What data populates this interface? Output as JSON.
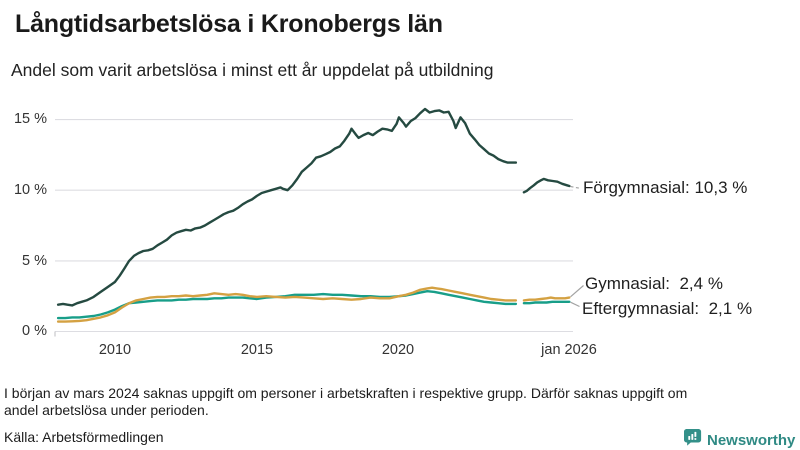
{
  "header": {
    "title": "Långtidsarbetslösa i Kronobergs län",
    "subtitle": "Andel som varit arbetslösa i minst ett år uppdelat på utbildning"
  },
  "chart_data": {
    "type": "line",
    "title": "Långtidsarbetslösa i Kronobergs län",
    "subtitle": "Andel som varit arbetslösa i minst ett år uppdelat på utbildning",
    "unit": "%",
    "x_domain": [
      2007.89,
      2026.13
    ],
    "ylim": [
      0,
      16.5
    ],
    "grid": "horizontal",
    "legend_position": "right-edge-labels",
    "data_gap": {
      "from": 2024.17,
      "to": 2024.4
    },
    "yticks": [
      {
        "v": 15,
        "label": "15 %"
      },
      {
        "v": 10,
        "label": "10 %"
      },
      {
        "v": 5,
        "label": "5 %"
      },
      {
        "v": 0,
        "label": "0 %"
      }
    ],
    "xticks": [
      {
        "t": 2010,
        "label": "2010"
      },
      {
        "t": 2015,
        "label": "2015"
      },
      {
        "t": 2020,
        "label": "2020"
      },
      {
        "t": 2026,
        "label": "jan 2026"
      }
    ],
    "series": [
      {
        "name": "Förgymnasial",
        "color": "#254A41",
        "end_value": "10,3 %",
        "end_label": "Förgymnasial: 10,3 %",
        "segments": [
          [
            [
              2008.0,
              1.9
            ],
            [
              2008.17,
              1.95
            ],
            [
              2008.33,
              1.9
            ],
            [
              2008.5,
              1.85
            ],
            [
              2008.67,
              2.0
            ],
            [
              2008.83,
              2.1
            ],
            [
              2009.0,
              2.2
            ],
            [
              2009.25,
              2.45
            ],
            [
              2009.5,
              2.8
            ],
            [
              2009.75,
              3.15
            ],
            [
              2010.0,
              3.5
            ],
            [
              2010.17,
              3.95
            ],
            [
              2010.33,
              4.45
            ],
            [
              2010.5,
              5.0
            ],
            [
              2010.67,
              5.35
            ],
            [
              2010.83,
              5.55
            ],
            [
              2011.0,
              5.7
            ],
            [
              2011.17,
              5.75
            ],
            [
              2011.33,
              5.85
            ],
            [
              2011.5,
              6.1
            ],
            [
              2011.67,
              6.3
            ],
            [
              2011.83,
              6.5
            ],
            [
              2012.0,
              6.8
            ],
            [
              2012.17,
              7.0
            ],
            [
              2012.33,
              7.1
            ],
            [
              2012.5,
              7.2
            ],
            [
              2012.67,
              7.15
            ],
            [
              2012.83,
              7.3
            ],
            [
              2013.0,
              7.35
            ],
            [
              2013.17,
              7.5
            ],
            [
              2013.33,
              7.7
            ],
            [
              2013.5,
              7.9
            ],
            [
              2013.67,
              8.1
            ],
            [
              2013.83,
              8.3
            ],
            [
              2014.0,
              8.45
            ],
            [
              2014.17,
              8.55
            ],
            [
              2014.33,
              8.75
            ],
            [
              2014.5,
              9.0
            ],
            [
              2014.67,
              9.2
            ],
            [
              2014.83,
              9.35
            ],
            [
              2015.0,
              9.6
            ],
            [
              2015.17,
              9.8
            ],
            [
              2015.33,
              9.9
            ],
            [
              2015.5,
              10.0
            ],
            [
              2015.67,
              10.1
            ],
            [
              2015.83,
              10.2
            ],
            [
              2015.92,
              10.1
            ],
            [
              2016.08,
              10.0
            ],
            [
              2016.25,
              10.35
            ],
            [
              2016.42,
              10.8
            ],
            [
              2016.58,
              11.3
            ],
            [
              2016.75,
              11.6
            ],
            [
              2016.92,
              11.9
            ],
            [
              2017.08,
              12.3
            ],
            [
              2017.25,
              12.4
            ],
            [
              2017.42,
              12.55
            ],
            [
              2017.58,
              12.7
            ],
            [
              2017.75,
              12.95
            ],
            [
              2017.92,
              13.1
            ],
            [
              2018.08,
              13.5
            ],
            [
              2018.25,
              14.0
            ],
            [
              2018.33,
              14.35
            ],
            [
              2018.5,
              13.9
            ],
            [
              2018.58,
              13.7
            ],
            [
              2018.75,
              13.9
            ],
            [
              2018.92,
              14.05
            ],
            [
              2019.08,
              13.9
            ],
            [
              2019.25,
              14.15
            ],
            [
              2019.42,
              14.35
            ],
            [
              2019.58,
              14.3
            ],
            [
              2019.75,
              14.2
            ],
            [
              2019.92,
              14.7
            ],
            [
              2020.0,
              15.15
            ],
            [
              2020.17,
              14.75
            ],
            [
              2020.25,
              14.5
            ],
            [
              2020.42,
              14.9
            ],
            [
              2020.58,
              15.1
            ],
            [
              2020.75,
              15.45
            ],
            [
              2020.92,
              15.75
            ],
            [
              2021.08,
              15.5
            ],
            [
              2021.25,
              15.6
            ],
            [
              2021.42,
              15.65
            ],
            [
              2021.58,
              15.5
            ],
            [
              2021.75,
              15.55
            ],
            [
              2021.92,
              14.9
            ],
            [
              2022.0,
              14.4
            ],
            [
              2022.17,
              15.15
            ],
            [
              2022.33,
              14.75
            ],
            [
              2022.5,
              14.0
            ],
            [
              2022.67,
              13.6
            ],
            [
              2022.83,
              13.2
            ],
            [
              2023.0,
              12.9
            ],
            [
              2023.17,
              12.6
            ],
            [
              2023.33,
              12.45
            ],
            [
              2023.5,
              12.2
            ],
            [
              2023.67,
              12.05
            ],
            [
              2023.83,
              11.95
            ],
            [
              2024.0,
              11.95
            ],
            [
              2024.12,
              11.95
            ]
          ],
          [
            [
              2024.4,
              9.85
            ],
            [
              2024.5,
              9.95
            ],
            [
              2024.62,
              10.15
            ],
            [
              2024.75,
              10.35
            ],
            [
              2024.87,
              10.55
            ],
            [
              2025.0,
              10.7
            ],
            [
              2025.1,
              10.8
            ],
            [
              2025.25,
              10.7
            ],
            [
              2025.42,
              10.65
            ],
            [
              2025.58,
              10.6
            ],
            [
              2025.75,
              10.45
            ],
            [
              2025.92,
              10.35
            ],
            [
              2026.0,
              10.3
            ]
          ]
        ]
      },
      {
        "name": "Gymnasial",
        "color": "#D4A142",
        "end_value": "2,4 %",
        "end_label": "Gymnasial:  2,4 %",
        "segments": [
          [
            [
              2008.0,
              0.7
            ],
            [
              2008.25,
              0.7
            ],
            [
              2008.5,
              0.72
            ],
            [
              2008.75,
              0.75
            ],
            [
              2009.0,
              0.8
            ],
            [
              2009.25,
              0.9
            ],
            [
              2009.5,
              1.0
            ],
            [
              2009.75,
              1.15
            ],
            [
              2010.0,
              1.35
            ],
            [
              2010.25,
              1.7
            ],
            [
              2010.5,
              2.0
            ],
            [
              2010.75,
              2.2
            ],
            [
              2011.0,
              2.3
            ],
            [
              2011.25,
              2.4
            ],
            [
              2011.5,
              2.45
            ],
            [
              2011.75,
              2.45
            ],
            [
              2012.0,
              2.5
            ],
            [
              2012.25,
              2.5
            ],
            [
              2012.5,
              2.55
            ],
            [
              2012.75,
              2.5
            ],
            [
              2013.0,
              2.55
            ],
            [
              2013.25,
              2.6
            ],
            [
              2013.5,
              2.7
            ],
            [
              2013.75,
              2.65
            ],
            [
              2014.0,
              2.6
            ],
            [
              2014.25,
              2.65
            ],
            [
              2014.5,
              2.6
            ],
            [
              2014.75,
              2.5
            ],
            [
              2015.0,
              2.45
            ],
            [
              2015.33,
              2.5
            ],
            [
              2015.67,
              2.45
            ],
            [
              2016.0,
              2.4
            ],
            [
              2016.33,
              2.45
            ],
            [
              2016.67,
              2.4
            ],
            [
              2017.0,
              2.35
            ],
            [
              2017.33,
              2.3
            ],
            [
              2017.67,
              2.35
            ],
            [
              2018.0,
              2.3
            ],
            [
              2018.33,
              2.25
            ],
            [
              2018.67,
              2.3
            ],
            [
              2019.0,
              2.4
            ],
            [
              2019.33,
              2.35
            ],
            [
              2019.67,
              2.35
            ],
            [
              2020.0,
              2.5
            ],
            [
              2020.25,
              2.6
            ],
            [
              2020.5,
              2.75
            ],
            [
              2020.75,
              2.95
            ],
            [
              2021.0,
              3.05
            ],
            [
              2021.17,
              3.1
            ],
            [
              2021.33,
              3.05
            ],
            [
              2021.5,
              3.0
            ],
            [
              2021.75,
              2.9
            ],
            [
              2022.0,
              2.8
            ],
            [
              2022.25,
              2.7
            ],
            [
              2022.5,
              2.6
            ],
            [
              2022.75,
              2.5
            ],
            [
              2023.0,
              2.4
            ],
            [
              2023.25,
              2.3
            ],
            [
              2023.5,
              2.25
            ],
            [
              2023.75,
              2.2
            ],
            [
              2024.0,
              2.2
            ],
            [
              2024.12,
              2.2
            ]
          ],
          [
            [
              2024.4,
              2.2
            ],
            [
              2024.6,
              2.25
            ],
            [
              2024.8,
              2.25
            ],
            [
              2025.0,
              2.3
            ],
            [
              2025.2,
              2.35
            ],
            [
              2025.35,
              2.4
            ],
            [
              2025.5,
              2.35
            ],
            [
              2025.7,
              2.35
            ],
            [
              2025.85,
              2.35
            ],
            [
              2026.0,
              2.4
            ]
          ]
        ]
      },
      {
        "name": "Eftergymnasial",
        "color": "#189E89",
        "end_value": "2,1 %",
        "end_label": "Eftergymnasial:  2,1 %",
        "segments": [
          [
            [
              2008.0,
              0.95
            ],
            [
              2008.25,
              0.95
            ],
            [
              2008.5,
              1.0
            ],
            [
              2008.75,
              1.0
            ],
            [
              2009.0,
              1.05
            ],
            [
              2009.25,
              1.1
            ],
            [
              2009.5,
              1.2
            ],
            [
              2009.75,
              1.35
            ],
            [
              2010.0,
              1.55
            ],
            [
              2010.25,
              1.8
            ],
            [
              2010.5,
              2.0
            ],
            [
              2010.75,
              2.05
            ],
            [
              2011.0,
              2.1
            ],
            [
              2011.25,
              2.15
            ],
            [
              2011.5,
              2.2
            ],
            [
              2011.75,
              2.2
            ],
            [
              2012.0,
              2.2
            ],
            [
              2012.25,
              2.25
            ],
            [
              2012.5,
              2.25
            ],
            [
              2012.75,
              2.3
            ],
            [
              2013.0,
              2.3
            ],
            [
              2013.25,
              2.3
            ],
            [
              2013.5,
              2.35
            ],
            [
              2013.75,
              2.35
            ],
            [
              2014.0,
              2.4
            ],
            [
              2014.25,
              2.4
            ],
            [
              2014.5,
              2.4
            ],
            [
              2014.75,
              2.35
            ],
            [
              2015.0,
              2.3
            ],
            [
              2015.33,
              2.4
            ],
            [
              2015.67,
              2.45
            ],
            [
              2016.0,
              2.5
            ],
            [
              2016.33,
              2.6
            ],
            [
              2016.67,
              2.6
            ],
            [
              2017.0,
              2.6
            ],
            [
              2017.33,
              2.65
            ],
            [
              2017.67,
              2.6
            ],
            [
              2018.0,
              2.6
            ],
            [
              2018.33,
              2.55
            ],
            [
              2018.67,
              2.5
            ],
            [
              2019.0,
              2.5
            ],
            [
              2019.33,
              2.45
            ],
            [
              2019.67,
              2.45
            ],
            [
              2020.0,
              2.5
            ],
            [
              2020.25,
              2.55
            ],
            [
              2020.5,
              2.65
            ],
            [
              2020.75,
              2.75
            ],
            [
              2021.0,
              2.85
            ],
            [
              2021.25,
              2.8
            ],
            [
              2021.5,
              2.7
            ],
            [
              2021.75,
              2.6
            ],
            [
              2022.0,
              2.5
            ],
            [
              2022.25,
              2.4
            ],
            [
              2022.5,
              2.3
            ],
            [
              2022.75,
              2.2
            ],
            [
              2023.0,
              2.1
            ],
            [
              2023.25,
              2.05
            ],
            [
              2023.5,
              2.0
            ],
            [
              2023.75,
              1.95
            ],
            [
              2024.0,
              1.95
            ],
            [
              2024.12,
              1.95
            ]
          ],
          [
            [
              2024.4,
              2.0
            ],
            [
              2024.6,
              2.0
            ],
            [
              2024.8,
              2.05
            ],
            [
              2025.0,
              2.05
            ],
            [
              2025.2,
              2.05
            ],
            [
              2025.4,
              2.1
            ],
            [
              2025.6,
              2.1
            ],
            [
              2025.8,
              2.1
            ],
            [
              2026.0,
              2.1
            ]
          ]
        ]
      }
    ]
  },
  "footer": {
    "note_line1": "I början av mars 2024 saknas uppgift om personer i arbetskraften i respektive grupp. Därför saknas uppgift om",
    "note_line2": "andel arbetslösa under perioden.",
    "source": "Källa: Arbetsförmedlingen",
    "brand": "Newsworthy",
    "brand_color": "#2F8A84"
  }
}
